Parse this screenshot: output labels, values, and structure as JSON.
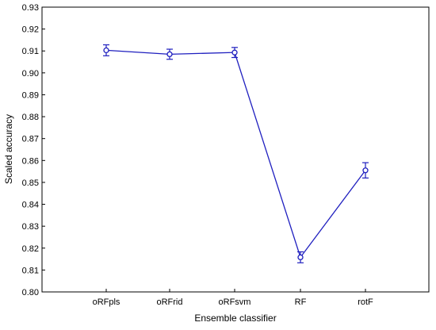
{
  "chart_data": {
    "type": "line",
    "categories": [
      "oRFpls",
      "oRFrid",
      "oRFsvm",
      "RF",
      "rotF"
    ],
    "series": [
      {
        "values": [
          0.9103,
          0.9085,
          0.9093,
          0.8158,
          0.8555
        ],
        "error_low": [
          0.9078,
          0.9062,
          0.907,
          0.8133,
          0.852
        ],
        "error_high": [
          0.9128,
          0.9108,
          0.9116,
          0.8183,
          0.859
        ],
        "color": "#1f1fbf",
        "marker": "open-circle"
      }
    ],
    "xlabel": "Ensemble classifier",
    "ylabel": "Scaled accuracy",
    "ylim": [
      0.8,
      0.93
    ],
    "yticks": [
      "0.80",
      "0.81",
      "0.82",
      "0.83",
      "0.84",
      "0.85",
      "0.86",
      "0.87",
      "0.88",
      "0.89",
      "0.90",
      "0.91",
      "0.92",
      "0.93"
    ],
    "grid": false,
    "legend": "none"
  }
}
